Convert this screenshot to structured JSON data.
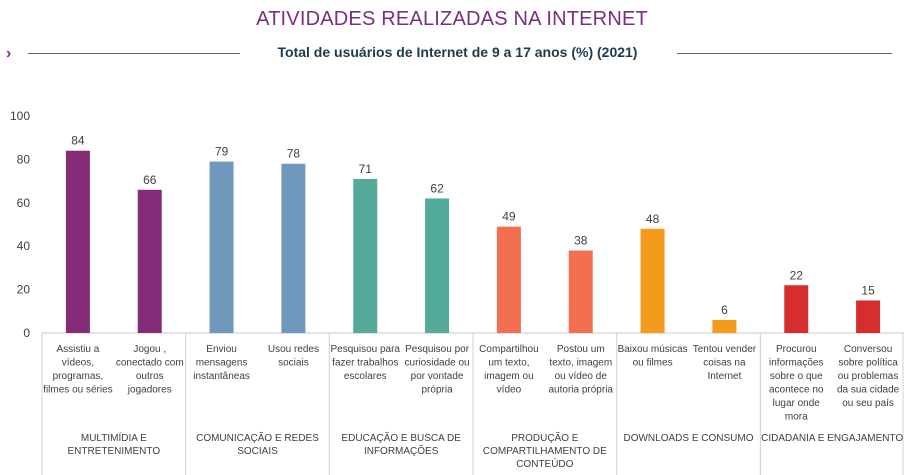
{
  "page": {
    "title": "ATIVIDADES REALIZADAS NA INTERNET",
    "subtitle": "Total de usuários de Internet de 9 a 17 anos (%) (2021)",
    "accent_color": "#7b2d7f",
    "subtitle_color": "#1f3a4d"
  },
  "chart_data": {
    "type": "bar",
    "title": "ATIVIDADES REALIZADAS NA INTERNET",
    "subtitle": "Total de usuários de Internet de 9 a 17 anos (%) (2021)",
    "ylim": [
      0,
      100
    ],
    "yticks": [
      0,
      20,
      40,
      60,
      80,
      100
    ],
    "grid": false,
    "categories": [
      "Assistiu a vídeos, programas, filmes ou séries",
      "Jogou , conectado com outros jogadores",
      "Enviou mensagens instantâneas",
      "Usou redes sociais",
      "Pesquisou para fazer trabalhos escolares",
      "Pesquisou por curiosidade ou por vontade própria",
      "Compartilhou um texto, imagem ou vídeo",
      "Postou um texto, imagem ou vídeo de autoria própria",
      "Baixou músicas ou filmes",
      "Tentou vender coisas na Internet",
      "Procurou informações sobre o que acontece no lugar onde mora",
      "Conversou sobre política ou problemas da sua cidade ou seu país"
    ],
    "category_lines": [
      [
        "Assistiu a",
        "vídeos,",
        "programas,",
        "filmes ou séries"
      ],
      [
        "Jogou ,",
        "conectado com",
        "outros",
        "jogadores"
      ],
      [
        "Enviou",
        "mensagens",
        "instantâneas"
      ],
      [
        "Usou redes",
        "sociais"
      ],
      [
        "Pesquisou para",
        "fazer trabalhos",
        "escolares"
      ],
      [
        "Pesquisou por",
        "curiosidade ou",
        "por vontade",
        "própria"
      ],
      [
        "Compartilhou",
        "um texto,",
        "imagem ou",
        "vídeo"
      ],
      [
        "Postou um",
        "texto, imagem",
        "ou vídeo de",
        "autoria própria"
      ],
      [
        "Baixou músicas",
        "ou filmes"
      ],
      [
        "Tentou vender",
        "coisas na",
        "Internet"
      ],
      [
        "Procurou",
        "informações",
        "sobre o que",
        "acontece no",
        "lugar onde",
        "mora"
      ],
      [
        "Conversou",
        "sobre política",
        "ou problemas",
        "da sua cidade",
        "ou seu país"
      ]
    ],
    "values": [
      84,
      66,
      79,
      78,
      71,
      62,
      49,
      38,
      48,
      6,
      22,
      15
    ],
    "bar_colors": [
      "#862b78",
      "#862b78",
      "#7098bd",
      "#7098bd",
      "#53a99a",
      "#53a99a",
      "#f2704f",
      "#f2704f",
      "#f49a1c",
      "#f49a1c",
      "#d62d2f",
      "#d62d2f"
    ],
    "groups": [
      {
        "lines": [
          "MULTIMÍDIA E",
          "ENTRETENIMENTO"
        ],
        "count": 2
      },
      {
        "lines": [
          "COMUNICAÇÃO E REDES",
          "SOCIAIS"
        ],
        "count": 2
      },
      {
        "lines": [
          "EDUCAÇÃO E BUSCA DE",
          "INFORMAÇÕES"
        ],
        "count": 2
      },
      {
        "lines": [
          "PRODUÇÃO E",
          "COMPARTILHAMENTO DE",
          "CONTEÚDO"
        ],
        "count": 2
      },
      {
        "lines": [
          "DOWNLOADS E CONSUMO"
        ],
        "count": 2
      },
      {
        "lines": [
          "CIDADANIA E ENGAJAMENTO"
        ],
        "count": 2
      }
    ]
  }
}
